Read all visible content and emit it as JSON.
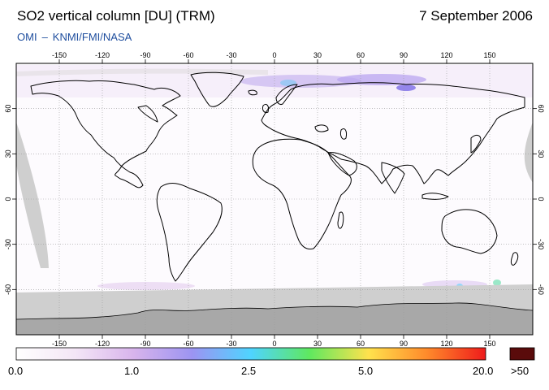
{
  "header": {
    "title": "SO2 vertical column [DU] (TRM)",
    "date": "7 September 2006",
    "source_left": "OMI",
    "source_dash": "–",
    "source_right": "KNMI/FMI/NASA"
  },
  "map": {
    "lon_ticks": [
      "-150",
      "-120",
      "-90",
      "-60",
      "-30",
      "0",
      "30",
      "60",
      "90",
      "120",
      "150"
    ],
    "lat_ticks": [
      "60",
      "30",
      "0",
      "-30",
      "-60"
    ],
    "lon_range": [
      -180,
      180
    ],
    "lat_range": [
      -90,
      90
    ],
    "grid": true
  },
  "colorbar": {
    "labels": [
      "0.0",
      "1.0",
      "2.5",
      "5.0",
      "20.0",
      ">50"
    ],
    "stops": [
      "#ffffff",
      "#f4e6f6",
      "#d8b4ec",
      "#9c94f2",
      "#4fd4ff",
      "#5fe85f",
      "#ffe24d",
      "#ff8a2b",
      "#ee1b1b"
    ],
    "overflow_color": "#5a0b0b"
  },
  "colors": {
    "no_data": "#cfcfcf",
    "antarctica": "#a8a8a8",
    "coast": "#000000",
    "grid": "#9a9a9a"
  }
}
